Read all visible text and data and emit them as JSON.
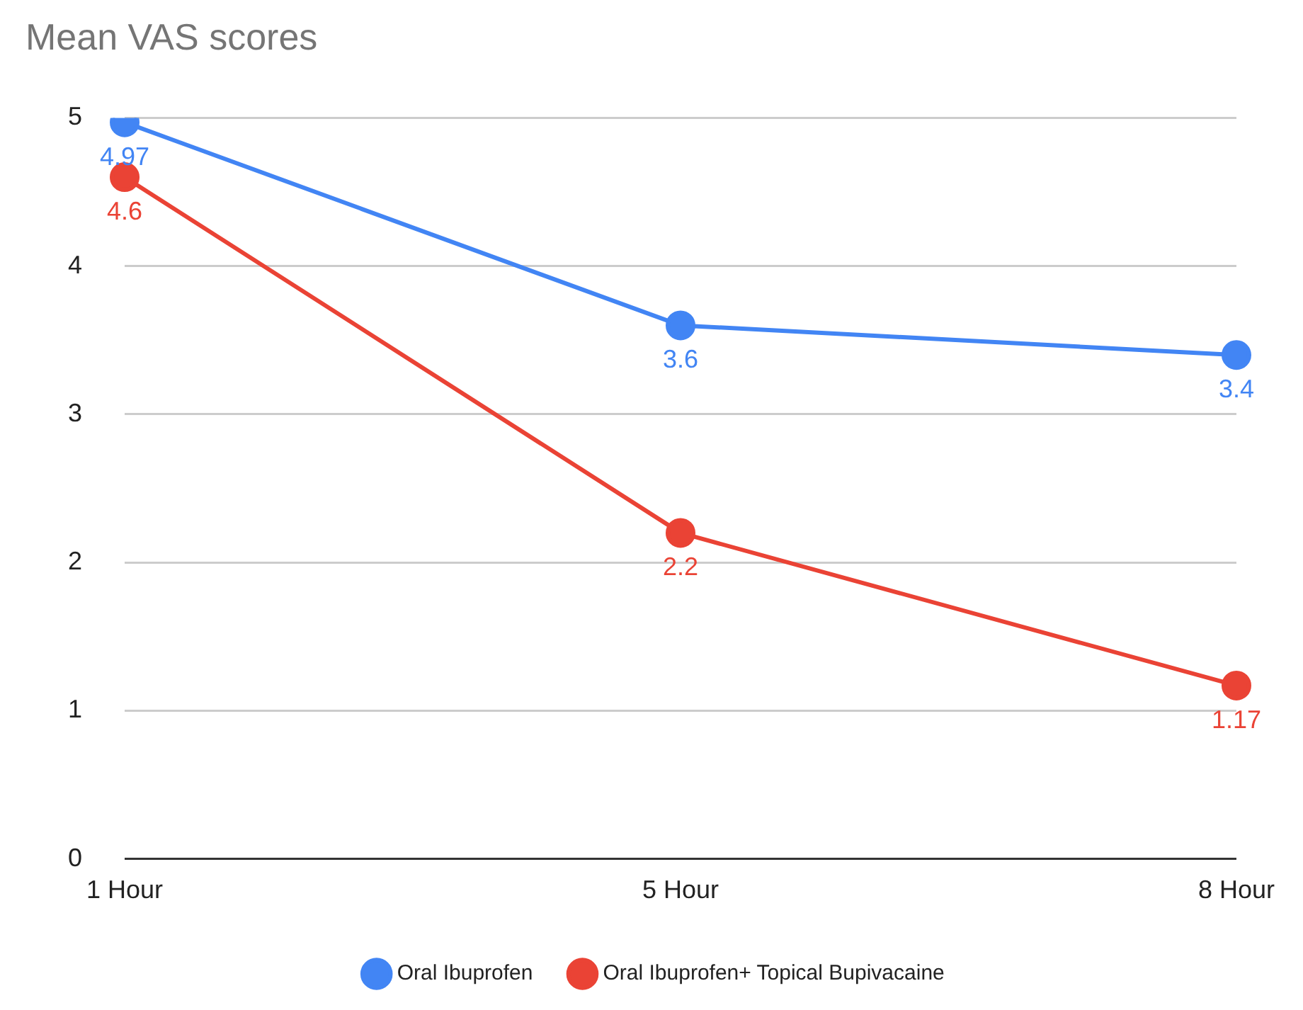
{
  "chart_data": {
    "type": "line",
    "title": "Mean VAS scores",
    "categories": [
      "1 Hour",
      "5 Hour",
      "8 Hour"
    ],
    "series": [
      {
        "name": "Oral Ibuprofen",
        "color": "#4285f4",
        "values": [
          4.97,
          3.6,
          3.4
        ]
      },
      {
        "name": "Oral Ibuprofen+ Topical Bupivacaine",
        "color": "#ea4335",
        "values": [
          4.6,
          2.2,
          1.17
        ]
      }
    ],
    "ylim": [
      0,
      5
    ],
    "yticks": [
      0,
      1,
      2,
      3,
      4,
      5
    ],
    "grid": "y",
    "legend": "bottom",
    "marker": "circle",
    "line_style": "solid",
    "data_labels": true
  }
}
